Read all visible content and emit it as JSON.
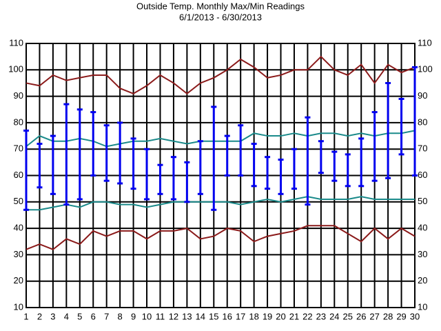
{
  "chart_data": {
    "type": "hilo",
    "title": "Outside Temp. Monthly Max/Min Readings",
    "subtitle": "6/1/2013 - 6/30/2013",
    "x": [
      1,
      2,
      3,
      4,
      5,
      6,
      7,
      8,
      9,
      10,
      11,
      12,
      13,
      14,
      15,
      16,
      17,
      18,
      19,
      20,
      21,
      22,
      23,
      24,
      25,
      26,
      27,
      28,
      29,
      30
    ],
    "xlim": [
      1,
      30
    ],
    "ylim": [
      10,
      110
    ],
    "yticks": [
      10,
      20,
      30,
      40,
      50,
      60,
      70,
      80,
      90,
      100,
      110
    ],
    "grid": true,
    "lines": [
      {
        "color": "#8b1a1a",
        "values": [
          95,
          94,
          98,
          96,
          97,
          98,
          98,
          93,
          91,
          94,
          98,
          95,
          91,
          95,
          97,
          100,
          104,
          101,
          97,
          98,
          100,
          100,
          105,
          100,
          98,
          102,
          95,
          102,
          99,
          101
        ]
      },
      {
        "color": "#1a8a8a",
        "values": [
          71,
          75,
          73,
          73,
          74,
          73,
          71,
          72,
          73,
          73,
          74,
          73,
          72,
          73,
          73,
          73,
          73,
          76,
          75,
          75,
          76,
          75,
          76,
          76,
          75,
          76,
          75,
          76,
          76,
          77
        ]
      },
      {
        "color": "#1a8a8a",
        "values": [
          47,
          47,
          48,
          49,
          48,
          50,
          50,
          49,
          49,
          48,
          49,
          50,
          50,
          50,
          50,
          50,
          49,
          50,
          51,
          50,
          51,
          52,
          51,
          51,
          51,
          52,
          51,
          51,
          51,
          51
        ]
      },
      {
        "color": "#8b1a1a",
        "values": [
          32,
          34,
          32,
          36,
          34,
          39,
          37,
          39,
          39,
          36,
          39,
          39,
          40,
          36,
          37,
          40,
          39,
          35,
          37,
          38,
          39,
          41,
          41,
          41,
          38,
          35,
          40,
          36,
          40,
          37
        ]
      }
    ],
    "range": {
      "color": "#0000ee",
      "low": [
        47,
        55.5,
        53,
        49,
        51,
        60,
        58,
        57,
        55,
        51,
        53,
        51,
        50,
        53,
        47,
        60,
        60,
        56,
        55,
        53,
        55,
        49,
        61,
        58,
        56,
        56,
        58,
        59,
        68,
        60
      ],
      "high": [
        77,
        72,
        75,
        87,
        85,
        84,
        79,
        80,
        74,
        70,
        64,
        67,
        65,
        73,
        86,
        75,
        79,
        72,
        67,
        66,
        70,
        82,
        73,
        69,
        68,
        74,
        84,
        95,
        89,
        101
      ]
    }
  }
}
